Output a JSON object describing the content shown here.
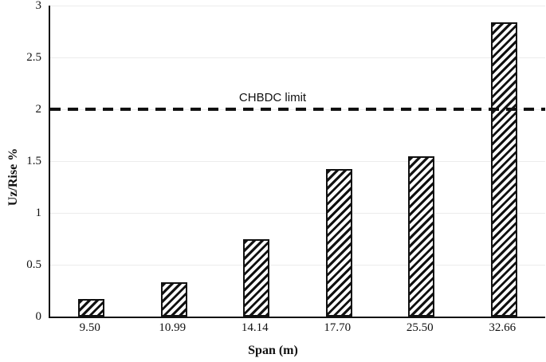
{
  "chart_data": {
    "type": "bar",
    "title": "",
    "categories": [
      "9.50",
      "10.99",
      "14.14",
      "17.70",
      "25.50",
      "32.66"
    ],
    "values": [
      0.17,
      0.33,
      0.75,
      1.42,
      1.55,
      2.84
    ],
    "xlabel": "Span (m)",
    "ylabel": "Uz/Rise %",
    "ylim": [
      0,
      3
    ],
    "ytick_values": [
      0,
      0.5,
      1,
      1.5,
      2,
      2.5,
      3
    ],
    "ytick_labels": [
      "0",
      "0.5",
      "1",
      "1.5",
      "2",
      "2.5",
      "3"
    ],
    "legend": "none",
    "grid": "horizontal-light",
    "bar_fill": "diagonal-hatch",
    "limit_line": {
      "value": 2,
      "label": "CHBDC limit",
      "style": "dashed"
    }
  },
  "colors": {
    "ink": "#111111",
    "grid": "#ececec",
    "background": "#ffffff"
  }
}
